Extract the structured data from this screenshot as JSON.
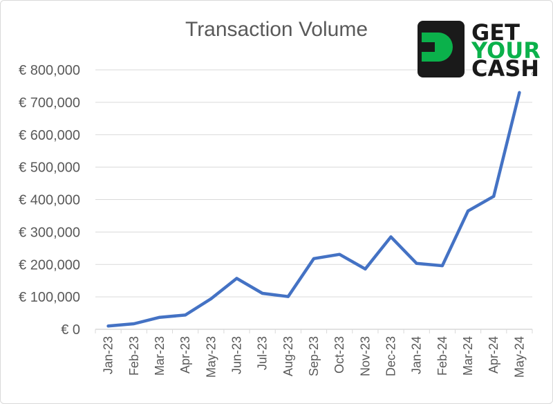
{
  "chart_data": {
    "type": "line",
    "title": "Transaction Volume",
    "xlabel": "",
    "ylabel": "",
    "ylim": [
      0,
      800000
    ],
    "y_ticks": [
      "€ 0",
      "€ 100,000",
      "€ 200,000",
      "€ 300,000",
      "€ 400,000",
      "€ 500,000",
      "€ 600,000",
      "€ 700,000",
      "€ 800,000"
    ],
    "categories": [
      "Jan-23",
      "Feb-23",
      "Mar-23",
      "Apr-23",
      "May-23",
      "Jun-23",
      "Jul-23",
      "Aug-23",
      "Sep-23",
      "Oct-23",
      "Nov-23",
      "Dec-23",
      "Jan-24",
      "Feb-24",
      "Mar-24",
      "Apr-24",
      "May-24"
    ],
    "series": [
      {
        "color": "#4472c4",
        "values": [
          10000,
          17000,
          37000,
          44000,
          94000,
          157000,
          111000,
          101000,
          218000,
          231000,
          186000,
          285000,
          203000,
          196000,
          365000,
          410000,
          730000
        ]
      }
    ],
    "grid": true,
    "gridline_color": "#d9d9d9"
  },
  "logo": {
    "line1": "GET",
    "line2": "YOUR",
    "line3": "CASH",
    "registered": "®",
    "green": "#0bb14b",
    "dark": "#1a1a1a"
  }
}
